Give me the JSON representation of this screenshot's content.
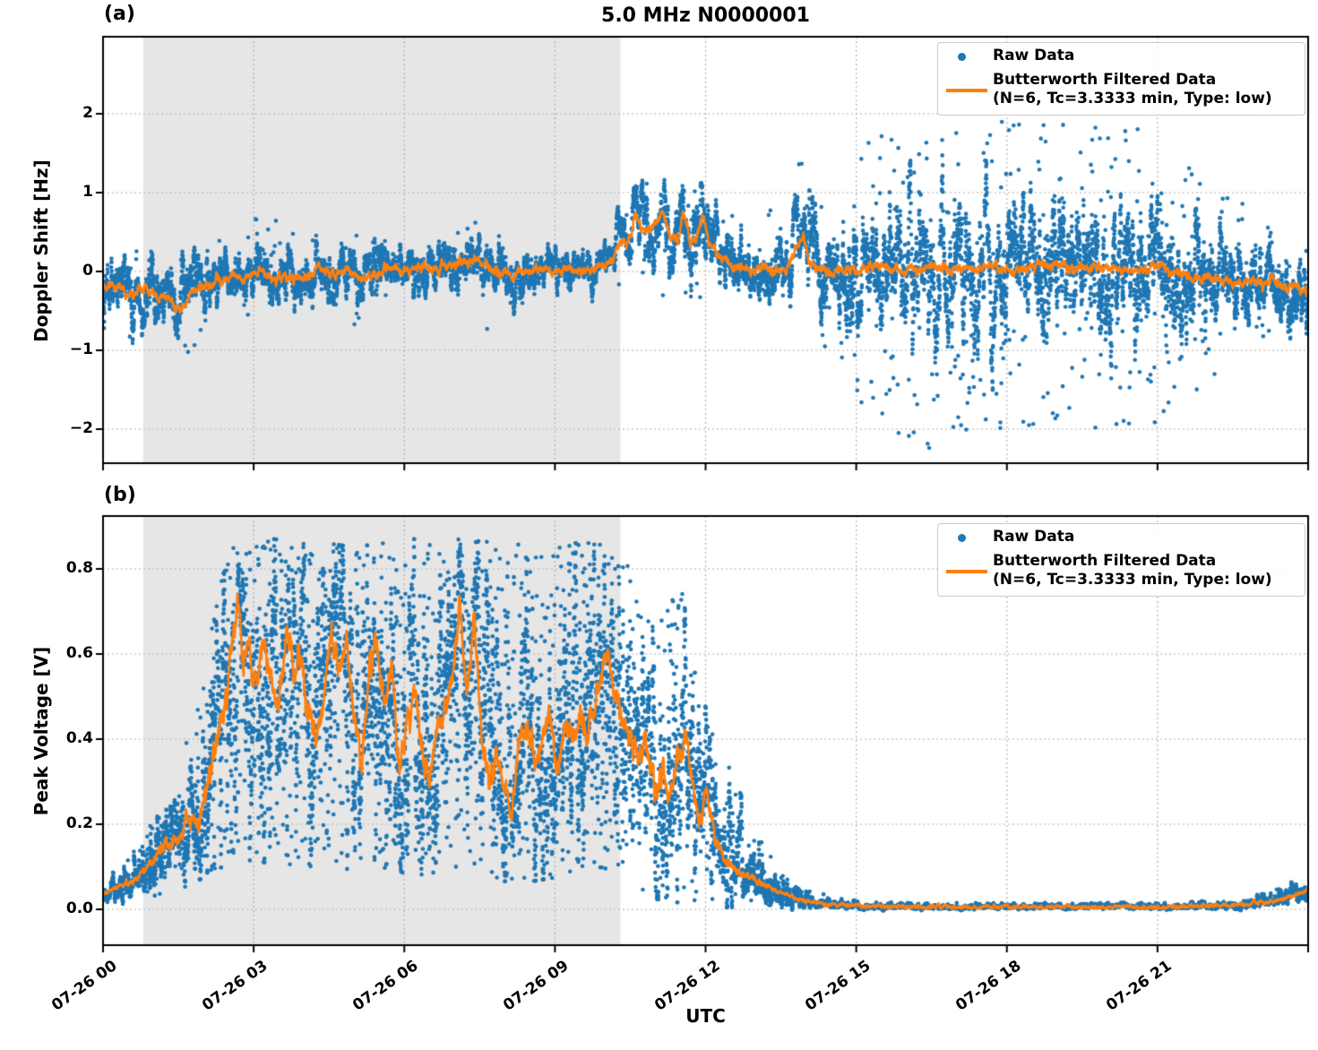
{
  "figure": {
    "title": "5.0 MHz N0000001",
    "panel_a_label": "(a)",
    "panel_b_label": "(b)",
    "background": "#ffffff"
  },
  "colors": {
    "raw": "#1f77b4",
    "filtered": "#ff7f0e",
    "shaded_region": "#e6e6e6",
    "grid": "#b0b0b0",
    "spine": "#000000",
    "legend_border": "#cccccc"
  },
  "legend": {
    "raw_label": "Raw Data",
    "filtered_label": "Butterworth Filtered Data",
    "filtered_sublabel": "(N=6, Tc=3.3333 min, Type: low)"
  },
  "x_axis": {
    "label": "UTC",
    "tick_hours": [
      0,
      3,
      6,
      9,
      12,
      15,
      18,
      21
    ],
    "tick_labels": [
      "07-26 00",
      "07-26 03",
      "07-26 06",
      "07-26 09",
      "07-26 12",
      "07-26 15",
      "07-26 18",
      "07-26 21"
    ],
    "range_hours": [
      0,
      24
    ]
  },
  "chart_data": [
    {
      "type": "scatter",
      "panel": "a",
      "series_names": [
        "Raw Data",
        "Butterworth Filtered Data (N=6, Tc=3.3333 min, Type: low)"
      ],
      "y_axis": {
        "label": "Doppler Shift [Hz]",
        "ticks": [
          2,
          1,
          0,
          -1,
          -2
        ],
        "tick_labels": [
          "2",
          "1",
          "0",
          "−1",
          "−2"
        ]
      },
      "ylim": [
        -2.432,
        2.977
      ],
      "shaded_hours": [
        0.8,
        10.3
      ],
      "grid": true,
      "legend_position": "upper right",
      "filtered_keypoints": [
        [
          0,
          -0.15
        ],
        [
          0.3,
          -0.2
        ],
        [
          0.65,
          -0.3
        ],
        [
          0.85,
          -0.2
        ],
        [
          1.1,
          -0.38
        ],
        [
          1.3,
          -0.3
        ],
        [
          1.5,
          -0.5
        ],
        [
          1.75,
          -0.3
        ],
        [
          1.95,
          -0.2
        ],
        [
          2.2,
          -0.12
        ],
        [
          2.5,
          -0.08
        ],
        [
          2.8,
          -0.1
        ],
        [
          3.1,
          -0.04
        ],
        [
          3.4,
          -0.12
        ],
        [
          3.7,
          -0.06
        ],
        [
          4.0,
          -0.1
        ],
        [
          4.3,
          0.02
        ],
        [
          4.6,
          -0.03
        ],
        [
          4.9,
          0.04
        ],
        [
          5.1,
          -0.12
        ],
        [
          5.4,
          -0.04
        ],
        [
          5.7,
          0.07
        ],
        [
          6.0,
          0.0
        ],
        [
          6.3,
          0.09
        ],
        [
          6.6,
          0.02
        ],
        [
          6.9,
          0.08
        ],
        [
          7.2,
          0.1
        ],
        [
          7.5,
          0.13
        ],
        [
          7.8,
          0.0
        ],
        [
          8.05,
          -0.07
        ],
        [
          8.3,
          0.0
        ],
        [
          8.6,
          0.02
        ],
        [
          9.0,
          0.0
        ],
        [
          9.4,
          0.02
        ],
        [
          9.8,
          0.04
        ],
        [
          10.1,
          0.12
        ],
        [
          10.35,
          0.4
        ],
        [
          10.5,
          0.45
        ],
        [
          10.65,
          0.7
        ],
        [
          10.8,
          0.5
        ],
        [
          11.0,
          0.62
        ],
        [
          11.15,
          0.74
        ],
        [
          11.3,
          0.42
        ],
        [
          11.45,
          0.36
        ],
        [
          11.55,
          0.76
        ],
        [
          11.7,
          0.32
        ],
        [
          11.82,
          0.45
        ],
        [
          11.95,
          0.72
        ],
        [
          12.1,
          0.35
        ],
        [
          12.3,
          0.18
        ],
        [
          12.5,
          0.08
        ],
        [
          12.8,
          0.04
        ],
        [
          13.2,
          0.02
        ],
        [
          13.6,
          0.04
        ],
        [
          13.83,
          0.28
        ],
        [
          13.95,
          0.45
        ],
        [
          14.1,
          0.06
        ],
        [
          14.5,
          0.0
        ],
        [
          15.0,
          0.03
        ],
        [
          15.5,
          0.06
        ],
        [
          16.0,
          0.0
        ],
        [
          16.5,
          0.05
        ],
        [
          17.0,
          0.02
        ],
        [
          17.5,
          0.08
        ],
        [
          18.0,
          0.0
        ],
        [
          18.5,
          0.04
        ],
        [
          19.0,
          0.09
        ],
        [
          19.5,
          0.02
        ],
        [
          20.0,
          0.06
        ],
        [
          20.5,
          0.0
        ],
        [
          21.0,
          0.06
        ],
        [
          21.5,
          -0.03
        ],
        [
          22.0,
          -0.08
        ],
        [
          22.5,
          -0.14
        ],
        [
          23.0,
          -0.18
        ],
        [
          23.4,
          -0.12
        ],
        [
          23.7,
          -0.2
        ],
        [
          24,
          -0.27
        ]
      ],
      "raw_envelope": [
        [
          0,
          0.2,
          -0.8,
          0.35
        ],
        [
          1,
          0.22,
          -1.0,
          0.32
        ],
        [
          1.7,
          0.22,
          -1.1,
          0.3
        ],
        [
          2.5,
          0.18,
          -0.8,
          0.5
        ],
        [
          3.3,
          0.18,
          -0.65,
          0.9
        ],
        [
          4,
          0.18,
          -0.6,
          0.6
        ],
        [
          5,
          0.2,
          -0.8,
          0.6
        ],
        [
          6,
          0.16,
          -0.55,
          0.5
        ],
        [
          7,
          0.16,
          -0.5,
          0.6
        ],
        [
          7.6,
          0.18,
          -0.75,
          0.7
        ],
        [
          8.3,
          0.15,
          -0.5,
          0.45
        ],
        [
          9.5,
          0.13,
          -0.4,
          0.45
        ],
        [
          10.1,
          0.15,
          -0.35,
          0.7
        ],
        [
          10.7,
          0.22,
          -0.3,
          1.15
        ],
        [
          11.5,
          0.24,
          -0.35,
          1.2
        ],
        [
          12.0,
          0.24,
          -0.4,
          1.1
        ],
        [
          12.7,
          0.2,
          -0.55,
          0.8
        ],
        [
          13.3,
          0.2,
          -0.6,
          0.9
        ],
        [
          13.95,
          0.3,
          -0.6,
          1.9
        ],
        [
          14.4,
          0.3,
          -1.0,
          1.1
        ],
        [
          15.0,
          0.38,
          -1.7,
          1.5
        ],
        [
          15.7,
          0.44,
          -2.1,
          1.9
        ],
        [
          16.5,
          0.45,
          -2.25,
          1.7
        ],
        [
          17.5,
          0.45,
          -2.0,
          1.9
        ],
        [
          18.5,
          0.44,
          -2.0,
          1.9
        ],
        [
          19.5,
          0.44,
          -2.1,
          1.85
        ],
        [
          20.5,
          0.42,
          -2.0,
          1.9
        ],
        [
          21.3,
          0.4,
          -1.9,
          1.5
        ],
        [
          22.0,
          0.35,
          -1.5,
          1.2
        ],
        [
          22.7,
          0.3,
          -1.1,
          0.9
        ],
        [
          23.3,
          0.28,
          -0.9,
          0.6
        ],
        [
          24,
          0.25,
          -0.8,
          0.5
        ]
      ]
    },
    {
      "type": "scatter",
      "panel": "b",
      "series_names": [
        "Raw Data",
        "Butterworth Filtered Data (N=6, Tc=3.3333 min, Type: low)"
      ],
      "y_axis": {
        "label": "Peak Voltage [V]",
        "ticks": [
          0.8,
          0.6,
          0.4,
          0.2,
          0.0
        ],
        "tick_labels": [
          "0.8",
          "0.6",
          "0.4",
          "0.2",
          "0.0"
        ]
      },
      "ylim": [
        -0.0842,
        0.9242
      ],
      "shaded_hours": [
        0.8,
        10.3
      ],
      "grid": true,
      "legend_position": "upper right",
      "filtered_keypoints": [
        [
          0,
          0.04
        ],
        [
          0.2,
          0.05
        ],
        [
          0.4,
          0.06
        ],
        [
          0.6,
          0.07
        ],
        [
          0.8,
          0.09
        ],
        [
          1.0,
          0.12
        ],
        [
          1.2,
          0.16
        ],
        [
          1.4,
          0.16
        ],
        [
          1.6,
          0.19
        ],
        [
          1.8,
          0.22
        ],
        [
          1.9,
          0.18
        ],
        [
          2.0,
          0.24
        ],
        [
          2.1,
          0.3
        ],
        [
          2.2,
          0.38
        ],
        [
          2.35,
          0.45
        ],
        [
          2.5,
          0.55
        ],
        [
          2.6,
          0.66
        ],
        [
          2.7,
          0.7
        ],
        [
          2.8,
          0.55
        ],
        [
          2.9,
          0.62
        ],
        [
          3.0,
          0.52
        ],
        [
          3.1,
          0.56
        ],
        [
          3.2,
          0.64
        ],
        [
          3.35,
          0.56
        ],
        [
          3.5,
          0.45
        ],
        [
          3.65,
          0.65
        ],
        [
          3.8,
          0.55
        ],
        [
          3.95,
          0.58
        ],
        [
          4.1,
          0.48
        ],
        [
          4.25,
          0.4
        ],
        [
          4.4,
          0.52
        ],
        [
          4.55,
          0.66
        ],
        [
          4.7,
          0.55
        ],
        [
          4.85,
          0.62
        ],
        [
          5.0,
          0.45
        ],
        [
          5.15,
          0.35
        ],
        [
          5.3,
          0.58
        ],
        [
          5.45,
          0.62
        ],
        [
          5.6,
          0.5
        ],
        [
          5.75,
          0.55
        ],
        [
          5.9,
          0.32
        ],
        [
          6.05,
          0.45
        ],
        [
          6.2,
          0.52
        ],
        [
          6.35,
          0.4
        ],
        [
          6.5,
          0.3
        ],
        [
          6.65,
          0.42
        ],
        [
          6.8,
          0.48
        ],
        [
          6.95,
          0.55
        ],
        [
          7.1,
          0.73
        ],
        [
          7.25,
          0.5
        ],
        [
          7.4,
          0.68
        ],
        [
          7.55,
          0.35
        ],
        [
          7.7,
          0.3
        ],
        [
          7.85,
          0.36
        ],
        [
          8.0,
          0.28
        ],
        [
          8.15,
          0.22
        ],
        [
          8.3,
          0.38
        ],
        [
          8.45,
          0.43
        ],
        [
          8.6,
          0.35
        ],
        [
          8.75,
          0.4
        ],
        [
          8.9,
          0.43
        ],
        [
          9.05,
          0.36
        ],
        [
          9.2,
          0.42
        ],
        [
          9.35,
          0.4
        ],
        [
          9.5,
          0.46
        ],
        [
          9.65,
          0.43
        ],
        [
          9.8,
          0.5
        ],
        [
          9.95,
          0.55
        ],
        [
          10.05,
          0.62
        ],
        [
          10.2,
          0.5
        ],
        [
          10.35,
          0.45
        ],
        [
          10.5,
          0.4
        ],
        [
          10.65,
          0.35
        ],
        [
          10.8,
          0.38
        ],
        [
          11.0,
          0.3
        ],
        [
          11.15,
          0.33
        ],
        [
          11.3,
          0.25
        ],
        [
          11.45,
          0.38
        ],
        [
          11.6,
          0.4
        ],
        [
          11.75,
          0.28
        ],
        [
          11.9,
          0.22
        ],
        [
          12.05,
          0.25
        ],
        [
          12.2,
          0.16
        ],
        [
          12.4,
          0.12
        ],
        [
          12.6,
          0.1
        ],
        [
          12.8,
          0.08
        ],
        [
          13.0,
          0.07
        ],
        [
          13.2,
          0.055
        ],
        [
          13.5,
          0.04
        ],
        [
          13.8,
          0.025
        ],
        [
          14.1,
          0.015
        ],
        [
          14.5,
          0.01
        ],
        [
          15,
          0.008
        ],
        [
          16,
          0.006
        ],
        [
          17,
          0.006
        ],
        [
          18,
          0.006
        ],
        [
          19,
          0.006
        ],
        [
          20,
          0.006
        ],
        [
          21,
          0.007
        ],
        [
          22,
          0.008
        ],
        [
          22.8,
          0.012
        ],
        [
          23.3,
          0.02
        ],
        [
          23.6,
          0.03
        ],
        [
          23.8,
          0.035
        ],
        [
          24,
          0.045
        ]
      ],
      "raw_envelope": [
        [
          0,
          0.01,
          0.08
        ],
        [
          0.5,
          0.02,
          0.12
        ],
        [
          1.0,
          0.03,
          0.22
        ],
        [
          1.5,
          0.05,
          0.32
        ],
        [
          2.0,
          0.08,
          0.55
        ],
        [
          2.3,
          0.1,
          0.75
        ],
        [
          2.6,
          0.12,
          0.87
        ],
        [
          3.0,
          0.12,
          0.87
        ],
        [
          4.0,
          0.1,
          0.87
        ],
        [
          5.0,
          0.1,
          0.85
        ],
        [
          6.0,
          0.08,
          0.87
        ],
        [
          7.0,
          0.1,
          0.87
        ],
        [
          8.0,
          0.06,
          0.86
        ],
        [
          9.0,
          0.08,
          0.85
        ],
        [
          9.8,
          0.1,
          0.87
        ],
        [
          10.3,
          0.08,
          0.87
        ],
        [
          10.6,
          0.05,
          0.75
        ],
        [
          11.0,
          0.03,
          0.65
        ],
        [
          11.5,
          0.02,
          0.77
        ],
        [
          11.8,
          0.02,
          0.55
        ],
        [
          12.2,
          0.01,
          0.4
        ],
        [
          12.6,
          0.01,
          0.3
        ],
        [
          13.0,
          0.005,
          0.18
        ],
        [
          13.5,
          0.003,
          0.1
        ],
        [
          14.0,
          0.002,
          0.05
        ],
        [
          14.5,
          0.001,
          0.03
        ],
        [
          15,
          0.0,
          0.02
        ],
        [
          17,
          0.0,
          0.015
        ],
        [
          20,
          0.0,
          0.015
        ],
        [
          22.5,
          0.0,
          0.02
        ],
        [
          23.2,
          0.005,
          0.04
        ],
        [
          23.6,
          0.01,
          0.06
        ],
        [
          24,
          0.015,
          0.08
        ]
      ]
    }
  ]
}
